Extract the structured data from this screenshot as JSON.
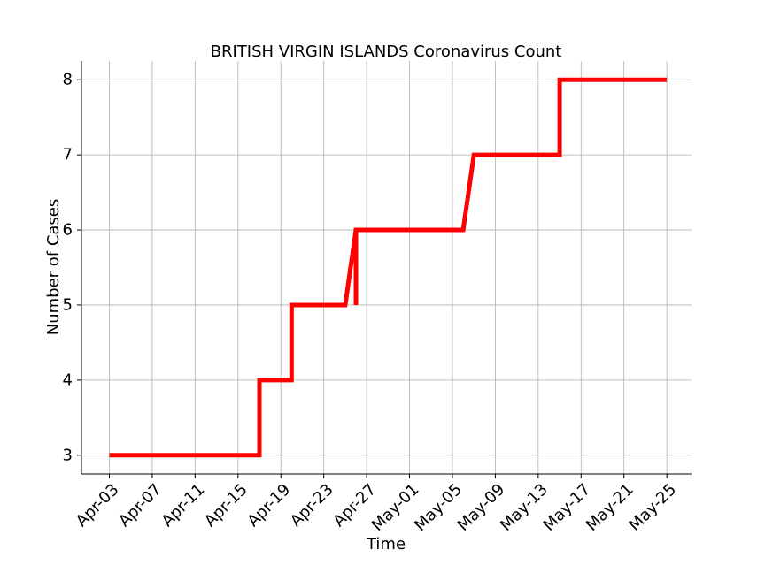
{
  "chart_data": {
    "type": "line",
    "title": "BRITISH VIRGIN ISLANDS Coronavirus Count",
    "xlabel": "Time",
    "ylabel": "Number of Cases",
    "x_tick_labels": [
      "Apr-03",
      "Apr-07",
      "Apr-11",
      "Apr-15",
      "Apr-19",
      "Apr-23",
      "Apr-27",
      "May-01",
      "May-05",
      "May-09",
      "May-13",
      "May-17",
      "May-21",
      "May-25"
    ],
    "y_ticks": [
      3,
      4,
      5,
      6,
      7,
      8
    ],
    "xlim": [
      "2020-04-00.4",
      "2020-05-27.3"
    ],
    "ylim": [
      2.75,
      8.25
    ],
    "grid": true,
    "color": "#ff0000",
    "series": [
      {
        "x": [
          "2020-04-03",
          "2020-04-17",
          "2020-04-17",
          "2020-04-20",
          "2020-04-20",
          "2020-04-25",
          "2020-04-26",
          "2020-04-26",
          "2020-04-26",
          "2020-05-06",
          "2020-05-07",
          "2020-05-15",
          "2020-05-15",
          "2020-05-25"
        ],
        "y": [
          3,
          3,
          4,
          4,
          5,
          5,
          6,
          5,
          6,
          6,
          7,
          7,
          8,
          8
        ]
      }
    ]
  }
}
